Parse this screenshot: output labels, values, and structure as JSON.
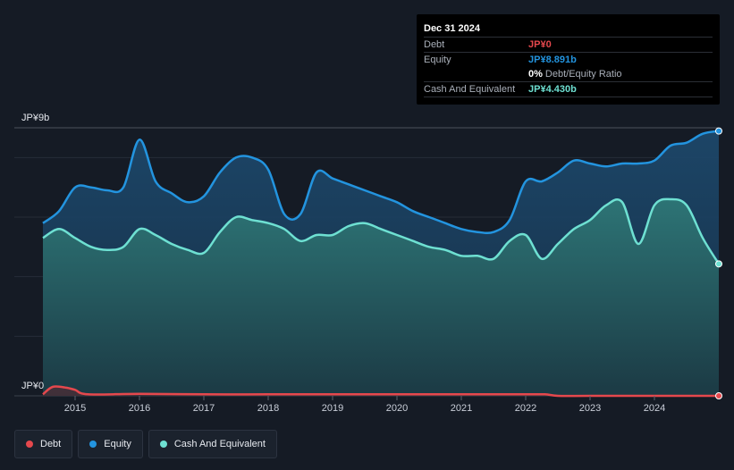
{
  "tooltip": {
    "date": "Dec 31 2024",
    "rows": {
      "debt": {
        "label": "Debt",
        "value": "JP¥0"
      },
      "equity": {
        "label": "Equity",
        "value": "JP¥8.891b"
      },
      "ratio": {
        "value": "0%",
        "label": "Debt/Equity Ratio"
      },
      "cash": {
        "label": "Cash And Equivalent",
        "value": "JP¥4.430b"
      }
    }
  },
  "legend": [
    {
      "name": "Debt",
      "color": "#e5484d"
    },
    {
      "name": "Equity",
      "color": "#2394df"
    },
    {
      "name": "Cash And Equivalent",
      "color": "#6ee0d2"
    }
  ],
  "chart_data": {
    "type": "area",
    "ylim": [
      0,
      9
    ],
    "y_axis_labels": {
      "top": "JP¥9b",
      "bottom": "JP¥0"
    },
    "x_ticks": [
      "2015",
      "2016",
      "2017",
      "2018",
      "2019",
      "2020",
      "2021",
      "2022",
      "2023",
      "2024"
    ],
    "x_range": [
      2014.5,
      2025.0
    ],
    "grid": true,
    "series": [
      {
        "name": "Equity",
        "color": "#2394df",
        "points": [
          [
            2014.5,
            5.8
          ],
          [
            2014.75,
            6.2
          ],
          [
            2015.0,
            7.0
          ],
          [
            2015.25,
            7.0
          ],
          [
            2015.5,
            6.9
          ],
          [
            2015.75,
            7.0
          ],
          [
            2016.0,
            8.6
          ],
          [
            2016.25,
            7.2
          ],
          [
            2016.5,
            6.8
          ],
          [
            2016.75,
            6.5
          ],
          [
            2017.0,
            6.7
          ],
          [
            2017.25,
            7.5
          ],
          [
            2017.5,
            8.0
          ],
          [
            2017.75,
            8.0
          ],
          [
            2018.0,
            7.6
          ],
          [
            2018.25,
            6.1
          ],
          [
            2018.5,
            6.1
          ],
          [
            2018.75,
            7.5
          ],
          [
            2019.0,
            7.3
          ],
          [
            2019.25,
            7.1
          ],
          [
            2019.5,
            6.9
          ],
          [
            2019.75,
            6.7
          ],
          [
            2020.0,
            6.5
          ],
          [
            2020.25,
            6.2
          ],
          [
            2020.5,
            6.0
          ],
          [
            2020.75,
            5.8
          ],
          [
            2021.0,
            5.6
          ],
          [
            2021.25,
            5.5
          ],
          [
            2021.5,
            5.5
          ],
          [
            2021.75,
            5.9
          ],
          [
            2022.0,
            7.2
          ],
          [
            2022.25,
            7.2
          ],
          [
            2022.5,
            7.5
          ],
          [
            2022.75,
            7.9
          ],
          [
            2023.0,
            7.8
          ],
          [
            2023.25,
            7.7
          ],
          [
            2023.5,
            7.8
          ],
          [
            2023.75,
            7.8
          ],
          [
            2024.0,
            7.9
          ],
          [
            2024.25,
            8.4
          ],
          [
            2024.5,
            8.5
          ],
          [
            2024.75,
            8.8
          ],
          [
            2025.0,
            8.891
          ]
        ]
      },
      {
        "name": "Cash And Equivalent",
        "color": "#6ee0d2",
        "points": [
          [
            2014.5,
            5.3
          ],
          [
            2014.75,
            5.6
          ],
          [
            2015.0,
            5.3
          ],
          [
            2015.25,
            5.0
          ],
          [
            2015.5,
            4.9
          ],
          [
            2015.75,
            5.0
          ],
          [
            2016.0,
            5.6
          ],
          [
            2016.25,
            5.4
          ],
          [
            2016.5,
            5.1
          ],
          [
            2016.75,
            4.9
          ],
          [
            2017.0,
            4.8
          ],
          [
            2017.25,
            5.5
          ],
          [
            2017.5,
            6.0
          ],
          [
            2017.75,
            5.9
          ],
          [
            2018.0,
            5.8
          ],
          [
            2018.25,
            5.6
          ],
          [
            2018.5,
            5.2
          ],
          [
            2018.75,
            5.4
          ],
          [
            2019.0,
            5.4
          ],
          [
            2019.25,
            5.7
          ],
          [
            2019.5,
            5.8
          ],
          [
            2019.75,
            5.6
          ],
          [
            2020.0,
            5.4
          ],
          [
            2020.25,
            5.2
          ],
          [
            2020.5,
            5.0
          ],
          [
            2020.75,
            4.9
          ],
          [
            2021.0,
            4.7
          ],
          [
            2021.25,
            4.7
          ],
          [
            2021.5,
            4.6
          ],
          [
            2021.75,
            5.2
          ],
          [
            2022.0,
            5.4
          ],
          [
            2022.25,
            4.6
          ],
          [
            2022.5,
            5.1
          ],
          [
            2022.75,
            5.6
          ],
          [
            2023.0,
            5.9
          ],
          [
            2023.25,
            6.4
          ],
          [
            2023.5,
            6.5
          ],
          [
            2023.75,
            5.1
          ],
          [
            2024.0,
            6.4
          ],
          [
            2024.25,
            6.6
          ],
          [
            2024.5,
            6.4
          ],
          [
            2024.75,
            5.3
          ],
          [
            2025.0,
            4.43
          ]
        ]
      },
      {
        "name": "Debt",
        "color": "#e5484d",
        "points": [
          [
            2014.5,
            0.05
          ],
          [
            2014.65,
            0.3
          ],
          [
            2014.85,
            0.28
          ],
          [
            2015.0,
            0.2
          ],
          [
            2015.2,
            0.05
          ],
          [
            2016.0,
            0.07
          ],
          [
            2017.0,
            0.05
          ],
          [
            2018.0,
            0.05
          ],
          [
            2019.0,
            0.05
          ],
          [
            2020.0,
            0.05
          ],
          [
            2021.0,
            0.05
          ],
          [
            2022.0,
            0.05
          ],
          [
            2022.3,
            0.05
          ],
          [
            2022.5,
            0.0
          ],
          [
            2023.0,
            0.0
          ],
          [
            2024.0,
            0.0
          ],
          [
            2025.0,
            0.0
          ]
        ]
      }
    ]
  }
}
